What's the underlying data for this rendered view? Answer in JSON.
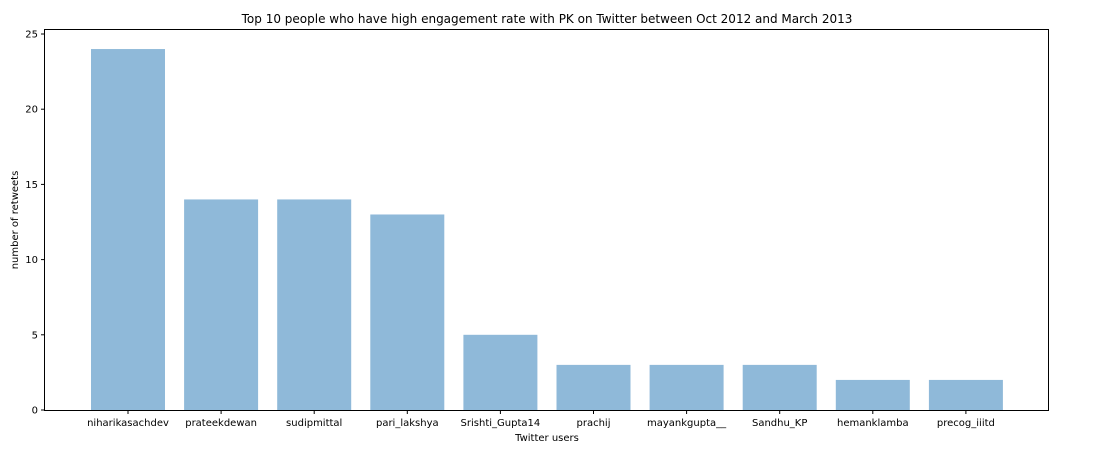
{
  "chart_data": {
    "type": "bar",
    "title": "Top 10 people who have high engagement rate with PK on Twitter between Oct 2012 and March 2013",
    "xlabel": "Twitter users",
    "ylabel": "number of retweets",
    "categories": [
      "niharikasachdev",
      "prateekdewan",
      "sudipmittal",
      "pari_lakshya",
      "Srishti_Gupta14",
      "prachij",
      "mayankgupta__",
      "Sandhu_KP",
      "hemanklamba",
      "precog_iiitd"
    ],
    "values": [
      24,
      14,
      14,
      13,
      5,
      3,
      3,
      3,
      2,
      2
    ],
    "ylim": [
      0,
      25
    ],
    "yticks": [
      0,
      5,
      10,
      15,
      20,
      25
    ],
    "bar_color": "#8fb9d9",
    "grid": false,
    "legend": "none"
  }
}
